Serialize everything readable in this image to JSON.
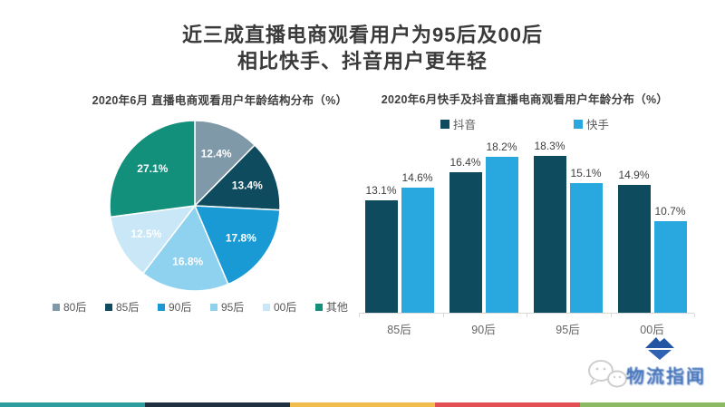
{
  "page": {
    "title_line1": "近三成直播电商观看用户为95后及00后",
    "title_line2": "相比快手、抖音用户更年轻",
    "title_color": "#3a3a3a",
    "background": "#ffffff"
  },
  "chart_data": [
    {
      "type": "pie",
      "title": "2020年6月 直播电商观看用户年龄结构分布（%）",
      "labels": [
        "80后",
        "85后",
        "90后",
        "95后",
        "00后",
        "其他"
      ],
      "values": [
        12.4,
        13.4,
        17.8,
        16.8,
        12.5,
        27.1
      ],
      "colors": [
        "#7f99a8",
        "#0f4b5e",
        "#1a9ad5",
        "#8fd2ef",
        "#c9e7f7",
        "#13907b"
      ],
      "start_angle_deg": 0,
      "direction": "clockwise",
      "label_format": "{value}%",
      "label_color": "#ffffff",
      "legend_position": "bottom"
    },
    {
      "type": "bar",
      "title": "2020年6月快手及抖音直播电商观看用户年龄分布（%）",
      "categories": [
        "85后",
        "90后",
        "95后",
        "00后"
      ],
      "series": [
        {
          "name": "抖音",
          "color": "#0f4b5e",
          "values": [
            13.1,
            16.4,
            18.3,
            14.9
          ]
        },
        {
          "name": "快手",
          "color": "#29a8e0",
          "values": [
            14.6,
            18.2,
            15.1,
            10.7
          ]
        }
      ],
      "ylim": [
        0,
        19
      ],
      "grid": false,
      "value_label_format": "{value}%",
      "legend_position": "top",
      "axis_color": "#d9d9d9"
    }
  ],
  "footer": {
    "stripe_colors": [
      "#2e9d9e",
      "#20303f",
      "#f0bd4d",
      "#e25055",
      "#8cba62"
    ],
    "logo_text": "物流指闻",
    "icons": {
      "wechat": "wechat-chat-bubbles",
      "logo_mark": "blue-diamond-mountain"
    }
  }
}
